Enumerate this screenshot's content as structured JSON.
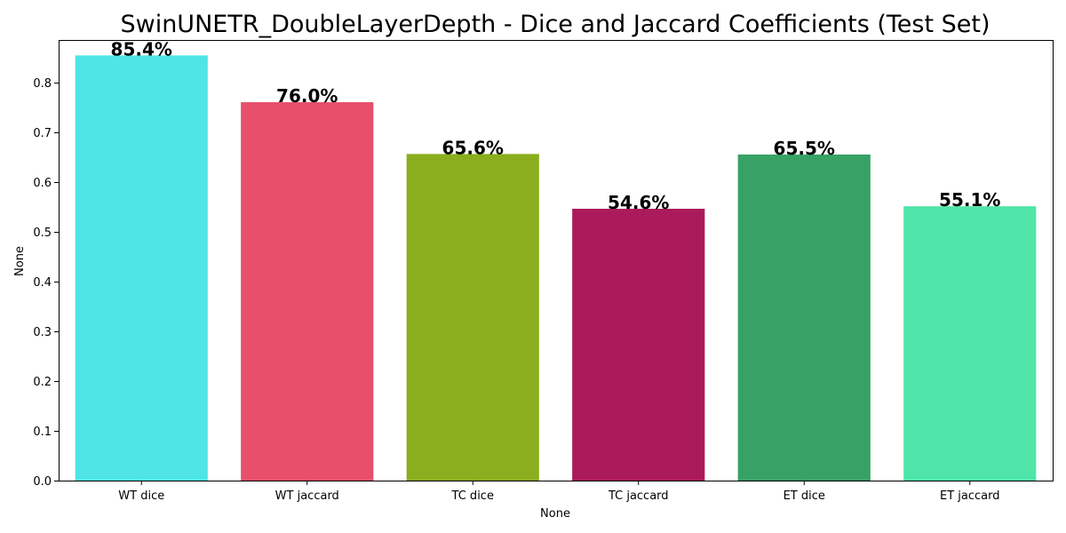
{
  "chart_data": {
    "type": "bar",
    "title": "SwinUNETR_DoubleLayerDepth - Dice and Jaccard Coefficients (Test Set)",
    "xlabel": "None",
    "ylabel": "None",
    "categories": [
      "WT dice",
      "WT jaccard",
      "TC dice",
      "TC jaccard",
      "ET dice",
      "ET jaccard"
    ],
    "values": [
      0.854,
      0.76,
      0.656,
      0.546,
      0.655,
      0.551
    ],
    "value_labels": [
      "85.4%",
      "76.0%",
      "65.6%",
      "54.6%",
      "65.5%",
      "55.1%"
    ],
    "colors": [
      "#4fe5e5",
      "#e74f6a",
      "#8aae1e",
      "#ab1b5b",
      "#38a266",
      "#4fe5a9"
    ],
    "ylim": [
      0,
      0.885
    ],
    "yticks": [
      0.0,
      0.1,
      0.2,
      0.3,
      0.4,
      0.5,
      0.6,
      0.7,
      0.8
    ],
    "ytick_labels": [
      "0.0",
      "0.1",
      "0.2",
      "0.3",
      "0.4",
      "0.5",
      "0.6",
      "0.7",
      "0.8"
    ],
    "grid": false,
    "legend": "none"
  }
}
